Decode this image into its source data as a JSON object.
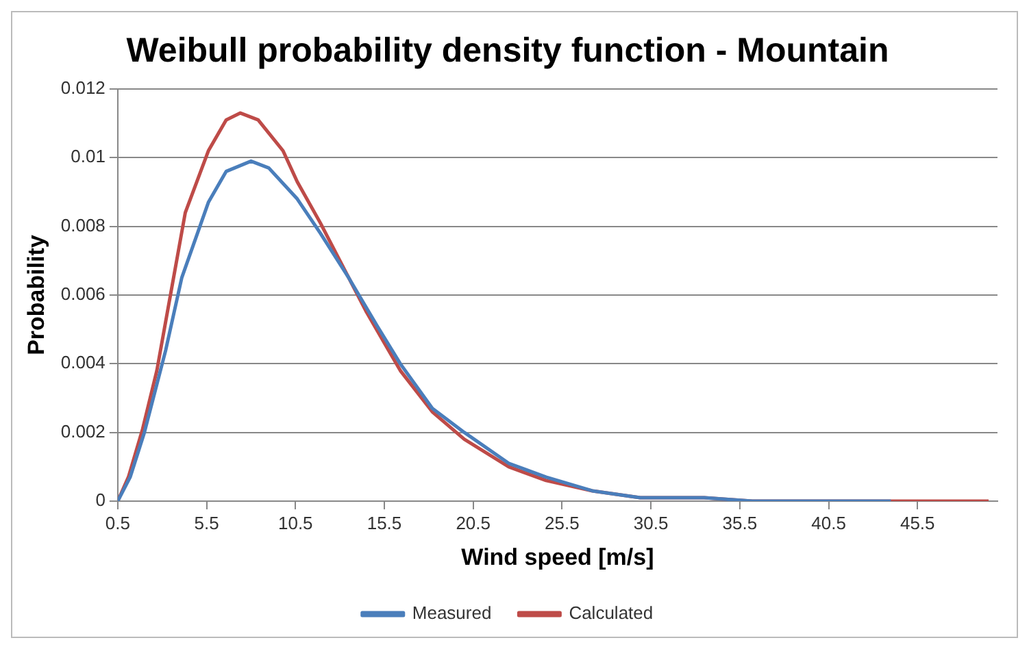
{
  "chart_data": {
    "type": "line",
    "title": "Weibull probability density function - Mountain",
    "xlabel": "Wind speed [m/s]",
    "ylabel": "Probability",
    "xlim": [
      0.5,
      50
    ],
    "xticks": [
      0.5,
      5.5,
      10.5,
      15.5,
      20.5,
      25.5,
      30.5,
      35.5,
      40.5,
      45.5
    ],
    "ylim": [
      0,
      0.012
    ],
    "yticks": [
      0,
      0.002,
      0.004,
      0.006,
      0.008,
      0.01,
      0.012
    ],
    "grid": "y",
    "legend": "bottom",
    "marker": "none",
    "line_style": "solid",
    "series": [
      {
        "name": "Measured",
        "color": "#4a7ebb",
        "x": [
          0.5,
          1.2,
          2.0,
          3.2,
          4.1,
          5.6,
          6.6,
          8.0,
          9.0,
          10.6,
          11.9,
          13.5,
          15.1,
          16.4,
          18.2,
          20.0,
          22.5,
          24.6,
          27.2,
          29.9,
          33.5,
          36.2,
          40.0,
          44.0
        ],
        "values": [
          0,
          0.0007,
          0.002,
          0.0044,
          0.0065,
          0.0087,
          0.0096,
          0.0099,
          0.0097,
          0.0088,
          0.0078,
          0.0065,
          0.0051,
          0.004,
          0.0027,
          0.002,
          0.0011,
          0.0007,
          0.0003,
          0.0001,
          0.0001,
          0,
          0,
          0
        ]
      },
      {
        "name": "Calculated",
        "color": "#be4b48",
        "x": [
          0.5,
          1.1,
          1.9,
          2.7,
          3.5,
          4.3,
          5.6,
          6.6,
          7.4,
          8.4,
          9.8,
          10.6,
          11.9,
          13.3,
          14.5,
          16.4,
          18.2,
          20.0,
          22.5,
          24.6,
          27.2,
          29.9,
          33.5,
          36.2,
          43.6,
          49.5
        ],
        "values": [
          0,
          0.0007,
          0.0021,
          0.0038,
          0.0061,
          0.0084,
          0.0102,
          0.0111,
          0.0113,
          0.0111,
          0.0102,
          0.0093,
          0.0081,
          0.0067,
          0.0055,
          0.0038,
          0.0026,
          0.0018,
          0.001,
          0.0006,
          0.0003,
          0.0001,
          0.0001,
          0,
          0,
          0
        ]
      }
    ]
  }
}
